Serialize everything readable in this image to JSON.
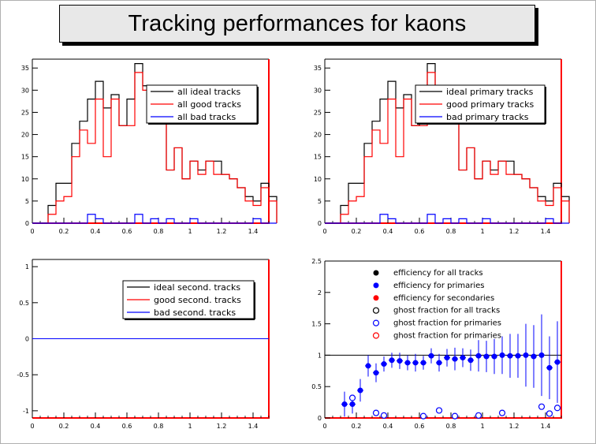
{
  "title": "Tracking performances for kaons",
  "colors": {
    "ideal": "#000000",
    "good": "#ff0000",
    "bad": "#0000ff",
    "frame_right": "#ff0000",
    "frame_bottom": "#ff0000"
  },
  "chart_data": [
    {
      "type": "bar",
      "subtype": "histogram-step",
      "xlim": [
        0,
        1.5
      ],
      "ylim": [
        0,
        37
      ],
      "x_ticks": [
        "0",
        "0.2",
        "0.4",
        "0.6",
        "0.8",
        "1",
        "1.2",
        "1.4"
      ],
      "y_ticks": [
        "0",
        "5",
        "10",
        "15",
        "20",
        "25",
        "30",
        "35"
      ],
      "bin_width": 0.05,
      "x_start": 0.0,
      "legend_position": "top-right",
      "series": [
        {
          "name": "all ideal tracks",
          "color": "#000000",
          "values": [
            0,
            0,
            4,
            9,
            9,
            18,
            23,
            28,
            32,
            26,
            29,
            22,
            28,
            36,
            31,
            26,
            24,
            12,
            17,
            10,
            14,
            12,
            14,
            14,
            11,
            10,
            8,
            6,
            5,
            9,
            6
          ]
        },
        {
          "name": "all good tracks",
          "color": "#ff0000",
          "values": [
            0,
            0,
            2,
            5,
            6,
            15,
            21,
            18,
            28,
            15,
            28,
            22,
            22,
            34,
            30,
            25,
            24,
            12,
            17,
            10,
            14,
            11,
            14,
            11,
            11,
            10,
            8,
            5,
            4,
            8,
            5
          ]
        },
        {
          "name": "all bad tracks",
          "color": "#0000ff",
          "values": [
            0,
            0,
            0,
            0,
            0,
            0,
            0,
            2,
            1,
            0,
            0,
            0,
            0,
            2,
            0,
            1,
            0,
            1,
            0,
            0,
            1,
            0,
            0,
            0,
            0,
            0,
            0,
            0,
            1,
            0,
            0
          ]
        }
      ]
    },
    {
      "type": "bar",
      "subtype": "histogram-step",
      "xlim": [
        0,
        1.5
      ],
      "ylim": [
        0,
        37
      ],
      "x_ticks": [
        "0",
        "0.2",
        "0.4",
        "0.6",
        "0.8",
        "1",
        "1.2",
        "1.4"
      ],
      "y_ticks": [
        "0",
        "5",
        "10",
        "15",
        "20",
        "25",
        "30",
        "35"
      ],
      "bin_width": 0.05,
      "x_start": 0.0,
      "legend_position": "top-right",
      "series": [
        {
          "name": "ideal primary tracks",
          "color": "#000000",
          "values": [
            0,
            0,
            4,
            9,
            9,
            18,
            23,
            28,
            32,
            26,
            29,
            22,
            28,
            36,
            31,
            26,
            24,
            12,
            17,
            10,
            14,
            12,
            14,
            14,
            11,
            10,
            8,
            6,
            5,
            9,
            6
          ]
        },
        {
          "name": "good primary tracks",
          "color": "#ff0000",
          "values": [
            0,
            0,
            2,
            5,
            6,
            15,
            21,
            18,
            28,
            15,
            28,
            22,
            22,
            34,
            30,
            25,
            24,
            12,
            17,
            10,
            14,
            11,
            14,
            11,
            11,
            10,
            8,
            5,
            4,
            8,
            5
          ]
        },
        {
          "name": "bad primary tracks",
          "color": "#0000ff",
          "values": [
            0,
            0,
            0,
            0,
            0,
            0,
            0,
            2,
            1,
            0,
            0,
            0,
            0,
            2,
            0,
            1,
            0,
            1,
            0,
            0,
            1,
            0,
            0,
            0,
            0,
            0,
            0,
            0,
            1,
            0,
            0
          ]
        }
      ]
    },
    {
      "type": "line",
      "xlim": [
        0,
        1.5
      ],
      "ylim": [
        -1.1,
        1.1
      ],
      "x_ticks": [
        "0",
        "0.2",
        "0.4",
        "0.6",
        "0.8",
        "1",
        "1.2",
        "1.4"
      ],
      "y_ticks": [
        "-1",
        "-0.5",
        "0",
        "0.5",
        "1"
      ],
      "legend_position": "top-right",
      "series": [
        {
          "name": "ideal second. tracks",
          "color": "#000000",
          "x": [
            0,
            1.5
          ],
          "y": [
            0,
            0
          ]
        },
        {
          "name": "good second. tracks",
          "color": "#ff0000",
          "x": [
            0,
            1.5
          ],
          "y": [
            0,
            0
          ]
        },
        {
          "name": "bad second. tracks",
          "color": "#0000ff",
          "x": [
            0,
            1.5
          ],
          "y": [
            0,
            0
          ]
        }
      ]
    },
    {
      "type": "scatter",
      "xlim": [
        0,
        1.5
      ],
      "ylim": [
        0,
        2.5
      ],
      "x_ticks": [
        "0",
        "0.2",
        "0.4",
        "0.6",
        "0.8",
        "1",
        "1.2",
        "1.4"
      ],
      "y_ticks": [
        "0",
        "0.5",
        "1",
        "1.5",
        "2",
        "2.5"
      ],
      "reference_line": 1,
      "legend_position": "top-left",
      "series": [
        {
          "name": "efficiency for all tracks",
          "marker": "filled",
          "color": "#000000",
          "x": [],
          "y": [],
          "err": []
        },
        {
          "name": "efficiency for primaries",
          "marker": "filled",
          "color": "#0000ff",
          "x": [
            0.125,
            0.175,
            0.225,
            0.275,
            0.325,
            0.375,
            0.425,
            0.475,
            0.525,
            0.575,
            0.625,
            0.675,
            0.725,
            0.775,
            0.825,
            0.875,
            0.925,
            0.975,
            1.025,
            1.075,
            1.125,
            1.175,
            1.225,
            1.275,
            1.325,
            1.375,
            1.425,
            1.475
          ],
          "y": [
            0.22,
            0.22,
            0.44,
            0.83,
            0.72,
            0.86,
            0.92,
            0.91,
            0.88,
            0.88,
            0.88,
            0.99,
            0.88,
            0.96,
            0.94,
            0.96,
            0.92,
            0.99,
            0.98,
            0.98,
            1.0,
            0.99,
            0.99,
            1.0,
            0.98,
            1.0,
            0.8,
            0.89
          ],
          "err": [
            0.2,
            0.15,
            0.18,
            0.17,
            0.15,
            0.12,
            0.12,
            0.13,
            0.12,
            0.14,
            0.11,
            0.12,
            0.14,
            0.14,
            0.18,
            0.15,
            0.17,
            0.25,
            0.25,
            0.28,
            0.3,
            0.35,
            0.35,
            0.5,
            0.5,
            0.65,
            0.5,
            0.65
          ]
        },
        {
          "name": "efficiency for secondaries",
          "marker": "filled",
          "color": "#ff0000",
          "x": [],
          "y": [],
          "err": []
        },
        {
          "name": "ghost fraction for all tracks",
          "marker": "open",
          "color": "#000000",
          "x": [],
          "y": []
        },
        {
          "name": "ghost fraction for primaries",
          "marker": "open",
          "color": "#0000ff",
          "x": [
            0.175,
            0.325,
            0.375,
            0.625,
            0.725,
            0.825,
            0.975,
            1.125,
            1.375,
            1.425,
            1.475
          ],
          "y": [
            0.32,
            0.08,
            0.04,
            0.03,
            0.12,
            0.03,
            0.04,
            0.08,
            0.18,
            0.07,
            0.16
          ]
        },
        {
          "name": "ghost fraction for primaries",
          "marker": "open",
          "color": "#ff0000",
          "x": [],
          "y": []
        }
      ]
    }
  ]
}
